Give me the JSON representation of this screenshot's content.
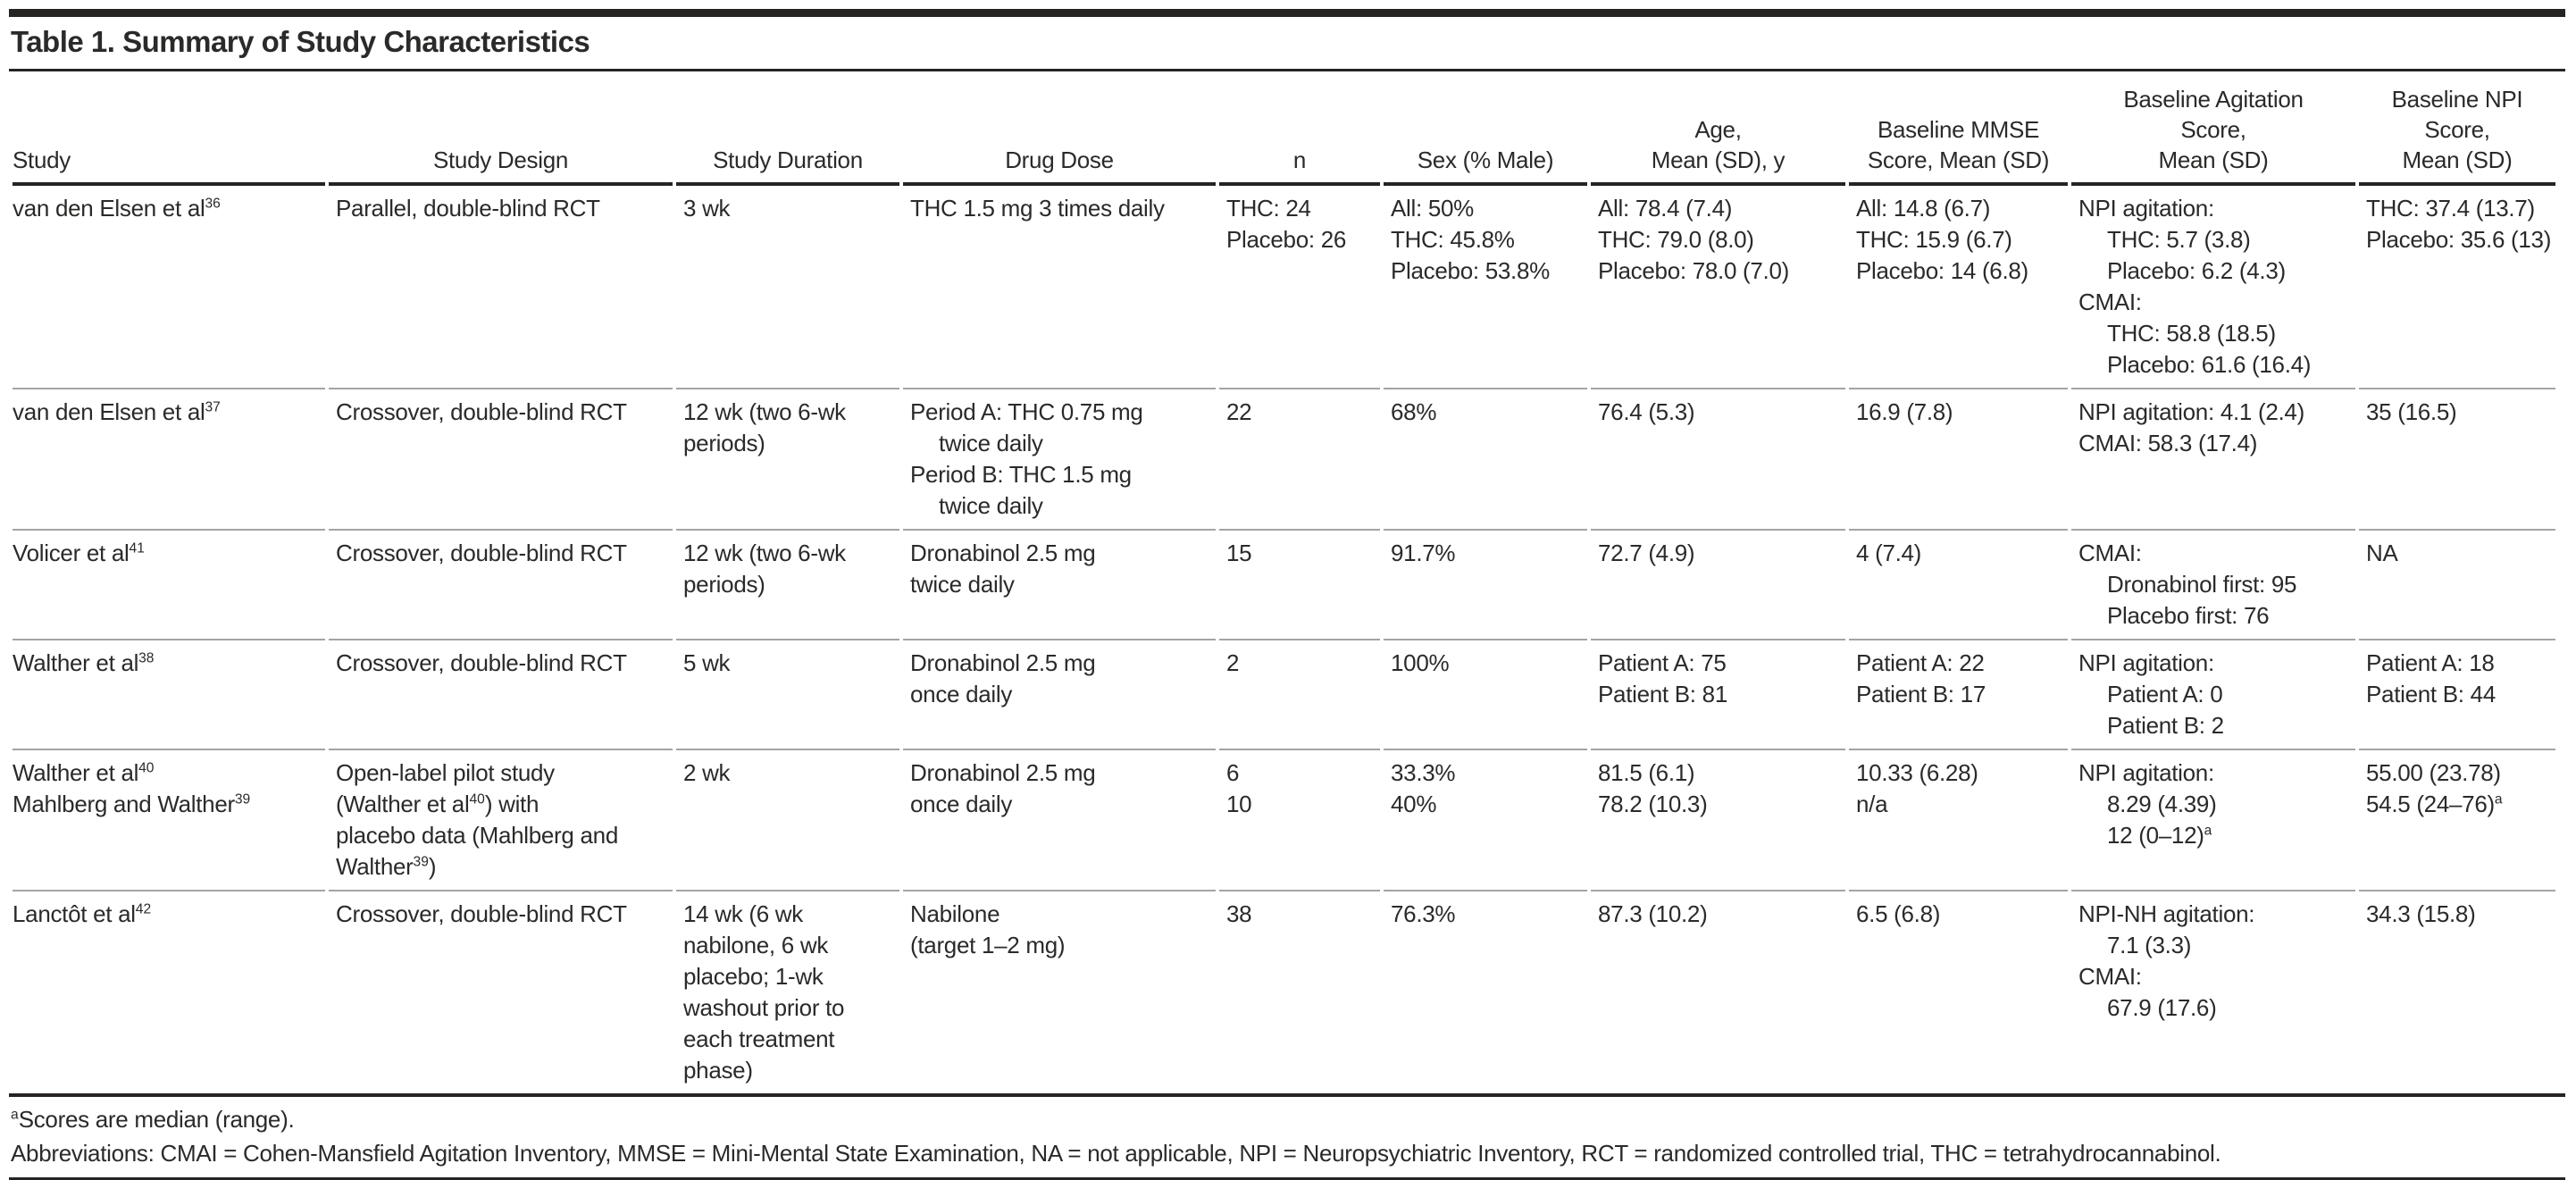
{
  "title": "Table 1. Summary of Study Characteristics",
  "colors": {
    "text": "#2b2a29",
    "rule_dark": "#262423",
    "rule_gray": "#a5a4a3",
    "background": "#ffffff"
  },
  "table": {
    "columns": [
      {
        "key": "study",
        "label": "Study",
        "align": "left"
      },
      {
        "key": "design",
        "label": "Study Design"
      },
      {
        "key": "duration",
        "label": "Study Duration"
      },
      {
        "key": "dose",
        "label": "Drug Dose"
      },
      {
        "key": "n",
        "label": "n"
      },
      {
        "key": "sex",
        "label": "Sex (% Male)"
      },
      {
        "key": "age",
        "label": "Age,\nMean (SD), y"
      },
      {
        "key": "mmse",
        "label": "Baseline MMSE\nScore, Mean (SD)"
      },
      {
        "key": "agitation",
        "label": "Baseline Agitation\nScore,\nMean (SD)"
      },
      {
        "key": "npi",
        "label": "Baseline NPI\nScore,\nMean (SD)"
      }
    ],
    "rows": [
      [
        [
          "van den Elsen et al^{36}"
        ],
        [
          "Parallel, double-blind RCT"
        ],
        [
          "3 wk"
        ],
        [
          "THC 1.5 mg 3 times daily"
        ],
        [
          "THC: 24",
          "Placebo: 26"
        ],
        [
          "All: 50%",
          "THC: 45.8%",
          "Placebo: 53.8%"
        ],
        [
          "All: 78.4 (7.4)",
          "THC: 79.0 (8.0)",
          "Placebo: 78.0 (7.0)"
        ],
        [
          "All: 14.8 (6.7)",
          "THC: 15.9 (6.7)",
          "Placebo: 14 (6.8)"
        ],
        [
          "NPI agitation:",
          {
            "t": "THC: 5.7 (3.8)",
            "i": 1
          },
          {
            "t": "Placebo: 6.2 (4.3)",
            "i": 1
          },
          "CMAI:",
          {
            "t": "THC: 58.8 (18.5)",
            "i": 1
          },
          {
            "t": "Placebo: 61.6 (16.4)",
            "i": 1
          }
        ],
        [
          "THC: 37.4 (13.7)",
          "Placebo: 35.6 (13)"
        ]
      ],
      [
        [
          "van den Elsen et al^{37}"
        ],
        [
          "Crossover, double-blind RCT"
        ],
        [
          "12 wk (two 6-wk",
          "periods)"
        ],
        [
          "Period A: THC 0.75 mg",
          {
            "t": "twice daily",
            "i": 1
          },
          "Period B: THC 1.5 mg",
          {
            "t": "twice daily",
            "i": 1
          }
        ],
        [
          "22"
        ],
        [
          "68%"
        ],
        [
          "76.4 (5.3)"
        ],
        [
          "16.9 (7.8)"
        ],
        [
          "NPI agitation: 4.1 (2.4)",
          "CMAI: 58.3 (17.4)"
        ],
        [
          "35 (16.5)"
        ]
      ],
      [
        [
          "Volicer et al^{41}"
        ],
        [
          "Crossover, double-blind RCT"
        ],
        [
          "12 wk (two 6-wk",
          "periods)"
        ],
        [
          "Dronabinol 2.5 mg",
          "twice daily"
        ],
        [
          "15"
        ],
        [
          "91.7%"
        ],
        [
          "72.7 (4.9)"
        ],
        [
          "4 (7.4)"
        ],
        [
          "CMAI:",
          {
            "t": "Dronabinol first: 95",
            "i": 1
          },
          {
            "t": "Placebo first: 76",
            "i": 1
          }
        ],
        [
          "NA"
        ]
      ],
      [
        [
          "Walther et al^{38}"
        ],
        [
          "Crossover, double-blind RCT"
        ],
        [
          "5 wk"
        ],
        [
          "Dronabinol 2.5 mg",
          "once daily"
        ],
        [
          "2"
        ],
        [
          "100%"
        ],
        [
          "Patient A: 75",
          "Patient B: 81"
        ],
        [
          "Patient A: 22",
          "Patient B: 17"
        ],
        [
          "NPI agitation:",
          {
            "t": "Patient A: 0",
            "i": 1
          },
          {
            "t": "Patient B: 2",
            "i": 1
          }
        ],
        [
          "Patient A: 18",
          "Patient B: 44"
        ]
      ],
      [
        [
          "Walther et al^{40}",
          "Mahlberg and Walther^{39}"
        ],
        [
          "Open-label pilot study",
          "(Walther et al^{40}) with",
          "placebo data (Mahlberg and",
          "Walther^{39})"
        ],
        [
          "2 wk"
        ],
        [
          "Dronabinol 2.5 mg",
          "once daily"
        ],
        [
          "6",
          "10"
        ],
        [
          "33.3%",
          "40%"
        ],
        [
          "81.5 (6.1)",
          "78.2 (10.3)"
        ],
        [
          "10.33 (6.28)",
          "n/a"
        ],
        [
          "NPI agitation:",
          {
            "t": "8.29 (4.39)",
            "i": 1
          },
          {
            "t": "12 (0–12)^{a}",
            "i": 1
          }
        ],
        [
          "55.00 (23.78)",
          "54.5 (24–76)^{a}"
        ]
      ],
      [
        [
          "Lanctôt et al^{42}"
        ],
        [
          "Crossover, double-blind RCT"
        ],
        [
          "14 wk (6 wk",
          "nabilone, 6 wk",
          "placebo; 1-wk",
          "washout prior to",
          "each treatment",
          "phase)"
        ],
        [
          "Nabilone",
          "(target 1–2 mg)"
        ],
        [
          "38"
        ],
        [
          "76.3%"
        ],
        [
          "87.3 (10.2)"
        ],
        [
          "6.5 (6.8)"
        ],
        [
          "NPI-NH agitation:",
          {
            "t": "7.1 (3.3)",
            "i": 1
          },
          "CMAI:",
          {
            "t": "67.9 (17.6)",
            "i": 1
          }
        ],
        [
          "34.3 (15.8)"
        ]
      ]
    ]
  },
  "footnotes": [
    "^{a}Scores are median (range).",
    "Abbreviations: CMAI = Cohen-Mansfield Agitation Inventory, MMSE = Mini-Mental State Examination, NA = not applicable, NPI = Neuropsychiatric Inventory, RCT = randomized controlled trial, THC = tetrahydrocannabinol."
  ]
}
